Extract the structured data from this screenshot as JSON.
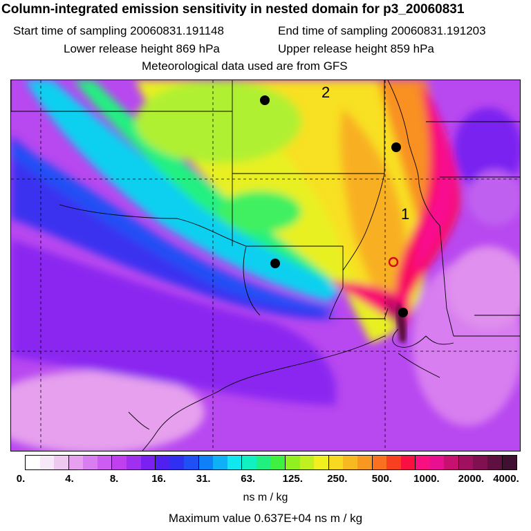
{
  "header": {
    "title": "Column-integrated emission sensitivity in nested domain for p3_20060831",
    "start_time": "Start time of sampling 20060831.191148",
    "end_time": "End time of sampling 20060831.191203",
    "lower_release": "Lower release height  869 hPa",
    "upper_release": "Upper release height  859 hPa",
    "met_data": "Meteorological data used are from GFS"
  },
  "map": {
    "labels": [
      "1",
      "2"
    ],
    "markers": [
      {
        "type": "release-point",
        "label": "black dot"
      },
      {
        "type": "release-point",
        "label": "black dot"
      },
      {
        "type": "release-point",
        "label": "black dot"
      },
      {
        "type": "release-point",
        "label": "black dot"
      },
      {
        "type": "sampling-point",
        "label": "red open circle"
      }
    ]
  },
  "colorbar": {
    "ticks": [
      "0.",
      "4.",
      "8.",
      "16.",
      "31.",
      "63.",
      "125.",
      "250.",
      "500.",
      "1000.",
      "2000.",
      "4000."
    ],
    "colors": [
      "#ffffff",
      "#f7e8f7",
      "#efc8ef",
      "#e6a0ee",
      "#d87ef0",
      "#cc5cf2",
      "#c040f0",
      "#a030f0",
      "#7a20f0",
      "#5020f0",
      "#3030f0",
      "#2050f5",
      "#1080f8",
      "#10b0f8",
      "#10e8f0",
      "#10f0c0",
      "#20f080",
      "#40f040",
      "#90f020",
      "#c0f020",
      "#f0f020",
      "#f8d820",
      "#f8b820",
      "#f89820",
      "#f87020",
      "#f84020",
      "#f81040",
      "#f81080",
      "#e81090",
      "#c81070",
      "#a01060",
      "#801050",
      "#601040",
      "#401030"
    ],
    "units": "ns m / kg"
  },
  "footer": {
    "max_value": "Maximum value  0.637E+04 ns m / kg"
  }
}
